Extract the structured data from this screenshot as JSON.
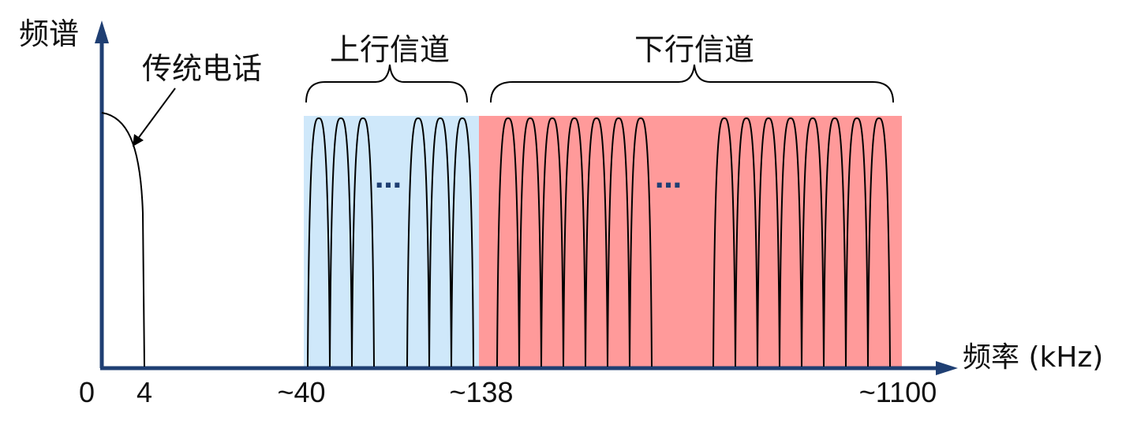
{
  "y_axis_label": "频谱",
  "x_axis_label": "频率 (kHz)",
  "phone_label": "传统电话",
  "upstream_label": "上行信道",
  "downstream_label": "下行信道",
  "ellipsis": "…",
  "ticks": [
    "0",
    "4",
    "~40",
    "~138",
    "~1100"
  ],
  "colors": {
    "axis": "#1f3f73",
    "upstream_band": "#cfe8fa",
    "downstream_band": "#ff9a9a",
    "curve": "#000000"
  }
}
